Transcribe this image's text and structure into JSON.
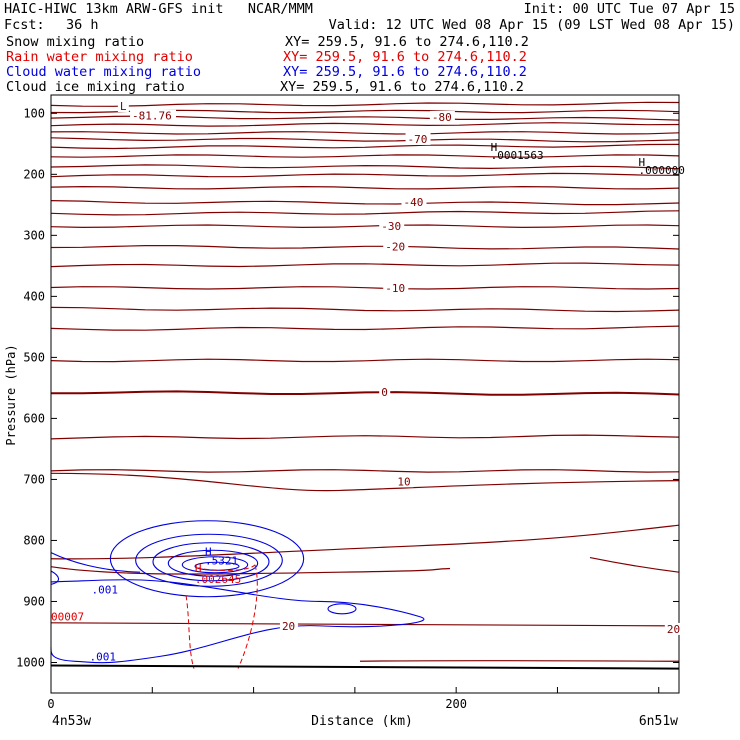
{
  "header": {
    "title": "HAIC-HIWC 13km ARW-GFS init   NCAR/MMM",
    "init": "Init: 00 UTC Tue 07 Apr 15",
    "fcst_label": "Fcst:",
    "fcst_value": "36 h",
    "valid": "Valid: 12 UTC Wed 08 Apr 15 (09 LST Wed 08 Apr 15)"
  },
  "fields": [
    {
      "name": "Snow mixing ratio",
      "xy": "XY= 259.5, 91.6 to 274.6,110.2",
      "color": "#000000"
    },
    {
      "name": "Rain water mixing ratio",
      "xy": "XY= 259.5, 91.6 to 274.6,110.2",
      "color": "#e00000"
    },
    {
      "name": "Cloud water mixing ratio",
      "xy": "XY= 259.5, 91.6 to 274.6,110.2",
      "color": "#0000dd"
    },
    {
      "name": "Cloud ice mixing ratio",
      "xy": "XY= 259.5, 91.6 to 274.6,110.2",
      "color": "#000000"
    }
  ],
  "chart_data": {
    "type": "cross-section contour",
    "xlabel": "Distance (km)",
    "ylabel": "Pressure (hPa)",
    "x_ticks": [
      "0",
      "200"
    ],
    "x_tick_values": [
      0,
      200
    ],
    "xlim": [
      0,
      310
    ],
    "y_ticks": [
      "100",
      "200",
      "300",
      "400",
      "500",
      "600",
      "700",
      "800",
      "900",
      "1000"
    ],
    "y_tick_values": [
      100,
      200,
      300,
      400,
      500,
      600,
      700,
      800,
      900,
      1000
    ],
    "ylim": [
      1050,
      70
    ],
    "endpoint_left": "4n53w",
    "endpoint_right": "6n51w",
    "temperature_contour_color": "#800000",
    "temperature_labels": [
      {
        "text": "-81.76",
        "x": 40,
        "p": 104
      },
      {
        "text": "L",
        "x": 34,
        "p": 88
      },
      {
        "text": "-80",
        "x": 188,
        "p": 106
      },
      {
        "text": "-70",
        "x": 176,
        "p": 142
      },
      {
        "text": "-40",
        "x": 174,
        "p": 245
      },
      {
        "text": "-30",
        "x": 163,
        "p": 285
      },
      {
        "text": "-20",
        "x": 165,
        "p": 318
      },
      {
        "text": "-10",
        "x": 165,
        "p": 386
      },
      {
        "text": "0",
        "x": 163,
        "p": 557
      },
      {
        "text": "10",
        "x": 171,
        "p": 703
      },
      {
        "text": "20",
        "x": 114,
        "p": 940
      },
      {
        "text": "20",
        "x": 304,
        "p": 945
      }
    ],
    "temperature_levels_p": [
      87,
      97,
      106,
      120,
      132,
      142,
      156,
      170,
      186,
      203,
      222,
      245,
      265,
      285,
      318,
      350,
      386,
      420,
      454,
      505,
      557,
      632,
      686
    ],
    "markers": [
      {
        "text": "H",
        "x": 217,
        "p": 155,
        "color": "#000000"
      },
      {
        "text": ".0001563",
        "x": 217,
        "p": 168,
        "color": "#000000"
      },
      {
        "text": "H",
        "x": 290,
        "p": 180,
        "color": "#000000"
      },
      {
        "text": ".000000",
        "x": 290,
        "p": 193,
        "color": "#000000"
      },
      {
        "text": "H",
        "x": 76,
        "p": 818,
        "color": "#0000dd"
      },
      {
        "text": ".5321",
        "x": 76,
        "p": 833,
        "color": "#0000dd"
      },
      {
        "text": "H",
        "x": 71,
        "p": 845,
        "color": "#e00000"
      },
      {
        "text": ".002645",
        "x": 71,
        "p": 863,
        "color": "#e00000"
      },
      {
        "text": ".001",
        "x": 20,
        "p": 880,
        "color": "#0000dd"
      },
      {
        "text": ".001",
        "x": 19,
        "p": 990,
        "color": "#0000dd"
      },
      {
        "text": "00007",
        "x": 0,
        "p": 925,
        "color": "#e00000"
      }
    ],
    "cloud_water_center": {
      "x": 77,
      "p": 830
    },
    "ground_pressure": [
      1005,
      1010
    ]
  }
}
